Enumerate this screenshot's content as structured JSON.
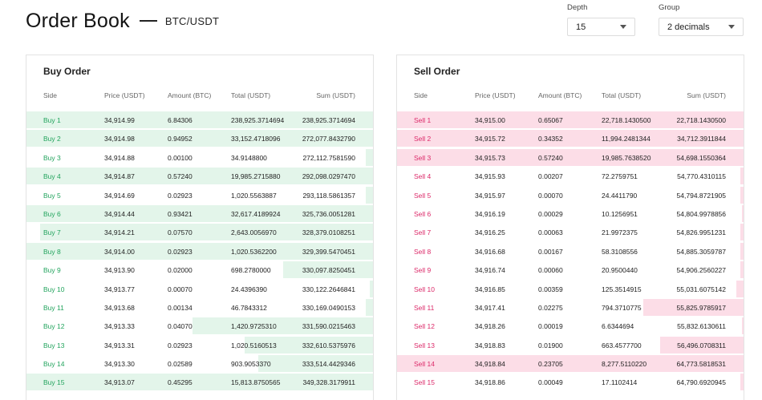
{
  "header": {
    "title": "Order Book",
    "pair": "BTC/USDT"
  },
  "controls": {
    "depth": {
      "label": "Depth",
      "value": "15"
    },
    "group": {
      "label": "Group",
      "value": "2 decimals"
    }
  },
  "columns": {
    "side": "Side",
    "price": "Price (USDT)",
    "amount": "Amount (BTC)",
    "total": "Total (USDT)",
    "sum": "Sum (USDT)"
  },
  "colors": {
    "buy_text": "#22a45d",
    "buy_bar": "#e3f5ea",
    "sell_text": "#dc2b6a",
    "sell_bar": "#fcdde7"
  },
  "buy": {
    "title": "Buy Order",
    "rows": [
      {
        "side": "Buy 1",
        "price": "34,914.99",
        "amount": "6.84306",
        "total": "238,925.3714694",
        "sum": "238,925.3714694",
        "depth_fraction": 1.0
      },
      {
        "side": "Buy 2",
        "price": "34,914.98",
        "amount": "0.94952",
        "total": "33,152.4718096",
        "sum": "272,077.8432790",
        "depth_fraction": 1.0
      },
      {
        "side": "Buy 3",
        "price": "34,914.88",
        "amount": "0.00100",
        "total": "34.9148800",
        "sum": "272,112.7581590",
        "depth_fraction": 0.02
      },
      {
        "side": "Buy 4",
        "price": "34,914.87",
        "amount": "0.57240",
        "total": "19,985.2715880",
        "sum": "292,098.0297470",
        "depth_fraction": 1.0
      },
      {
        "side": "Buy 5",
        "price": "34,914.69",
        "amount": "0.02923",
        "total": "1,020.5563887",
        "sum": "293,118.5861357",
        "depth_fraction": 0.02
      },
      {
        "side": "Buy 6",
        "price": "34,914.44",
        "amount": "0.93421",
        "total": "32,617.4189924",
        "sum": "325,736.0051281",
        "depth_fraction": 1.0
      },
      {
        "side": "Buy 7",
        "price": "34,914.21",
        "amount": "0.07570",
        "total": "2,643.0056970",
        "sum": "328,379.0108251",
        "depth_fraction": 0.96
      },
      {
        "side": "Buy 8",
        "price": "34,914.00",
        "amount": "0.02923",
        "total": "1,020.5362200",
        "sum": "329,399.5470451",
        "depth_fraction": 1.0
      },
      {
        "side": "Buy 9",
        "price": "34,913.90",
        "amount": "0.02000",
        "total": "698.2780000",
        "sum": "330,097.8250451",
        "depth_fraction": 0.26
      },
      {
        "side": "Buy 10",
        "price": "34,913.77",
        "amount": "0.00070",
        "total": "24.4396390",
        "sum": "330,122.2646841",
        "depth_fraction": 0.01
      },
      {
        "side": "Buy 11",
        "price": "34,913.68",
        "amount": "0.00134",
        "total": "46.7843312",
        "sum": "330,169.0490153",
        "depth_fraction": 0.02
      },
      {
        "side": "Buy 12",
        "price": "34,913.33",
        "amount": "0.04070",
        "total": "1,420.9725310",
        "sum": "331,590.0215463",
        "depth_fraction": 0.52
      },
      {
        "side": "Buy 13",
        "price": "34,913.31",
        "amount": "0.02923",
        "total": "1,020.5160513",
        "sum": "332,610.5375976",
        "depth_fraction": 0.37
      },
      {
        "side": "Buy 14",
        "price": "34,913.30",
        "amount": "0.02589",
        "total": "903.9053370",
        "sum": "333,514.4429346",
        "depth_fraction": 0.33
      },
      {
        "side": "Buy 15",
        "price": "34,913.07",
        "amount": "0.45295",
        "total": "15,813.8750565",
        "sum": "349,328.3179911",
        "depth_fraction": 1.0
      }
    ]
  },
  "sell": {
    "title": "Sell Order",
    "rows": [
      {
        "side": "Sell 1",
        "price": "34,915.00",
        "amount": "0.65067",
        "total": "22,718.1430500",
        "sum": "22,718.1430500",
        "depth_fraction": 1.0
      },
      {
        "side": "Sell 2",
        "price": "34,915.72",
        "amount": "0.34352",
        "total": "11,994.2481344",
        "sum": "34,712.3911844",
        "depth_fraction": 1.0
      },
      {
        "side": "Sell 3",
        "price": "34,915.73",
        "amount": "0.57240",
        "total": "19,985.7638520",
        "sum": "54,698.1550364",
        "depth_fraction": 1.0
      },
      {
        "side": "Sell 4",
        "price": "34,915.93",
        "amount": "0.00207",
        "total": "72.2759751",
        "sum": "54,770.4310115",
        "depth_fraction": 0.01
      },
      {
        "side": "Sell 5",
        "price": "34,915.97",
        "amount": "0.00070",
        "total": "24.4411790",
        "sum": "54,794.8721905",
        "depth_fraction": 0.01
      },
      {
        "side": "Sell 6",
        "price": "34,916.19",
        "amount": "0.00029",
        "total": "10.1256951",
        "sum": "54,804.9978856",
        "depth_fraction": 0.005
      },
      {
        "side": "Sell 7",
        "price": "34,916.25",
        "amount": "0.00063",
        "total": "21.9972375",
        "sum": "54,826.9951231",
        "depth_fraction": 0.01
      },
      {
        "side": "Sell 8",
        "price": "34,916.68",
        "amount": "0.00167",
        "total": "58.3108556",
        "sum": "54,885.3059787",
        "depth_fraction": 0.01
      },
      {
        "side": "Sell 9",
        "price": "34,916.74",
        "amount": "0.00060",
        "total": "20.9500440",
        "sum": "54,906.2560227",
        "depth_fraction": 0.01
      },
      {
        "side": "Sell 10",
        "price": "34,916.85",
        "amount": "0.00359",
        "total": "125.3514915",
        "sum": "55,031.6075142",
        "depth_fraction": 0.02
      },
      {
        "side": "Sell 11",
        "price": "34,917.41",
        "amount": "0.02275",
        "total": "794.3710775",
        "sum": "55,825.9785917",
        "depth_fraction": 0.29
      },
      {
        "side": "Sell 12",
        "price": "34,918.26",
        "amount": "0.00019",
        "total": "6.6344694",
        "sum": "55,832.6130611",
        "depth_fraction": 0.005
      },
      {
        "side": "Sell 13",
        "price": "34,918.83",
        "amount": "0.01900",
        "total": "663.4577700",
        "sum": "56,496.0708311",
        "depth_fraction": 0.24
      },
      {
        "side": "Sell 14",
        "price": "34,918.84",
        "amount": "0.23705",
        "total": "8,277.5110220",
        "sum": "64,773.5818531",
        "depth_fraction": 1.0
      },
      {
        "side": "Sell 15",
        "price": "34,918.86",
        "amount": "0.00049",
        "total": "17.1102414",
        "sum": "64,790.6920945",
        "depth_fraction": 0.01
      }
    ]
  }
}
